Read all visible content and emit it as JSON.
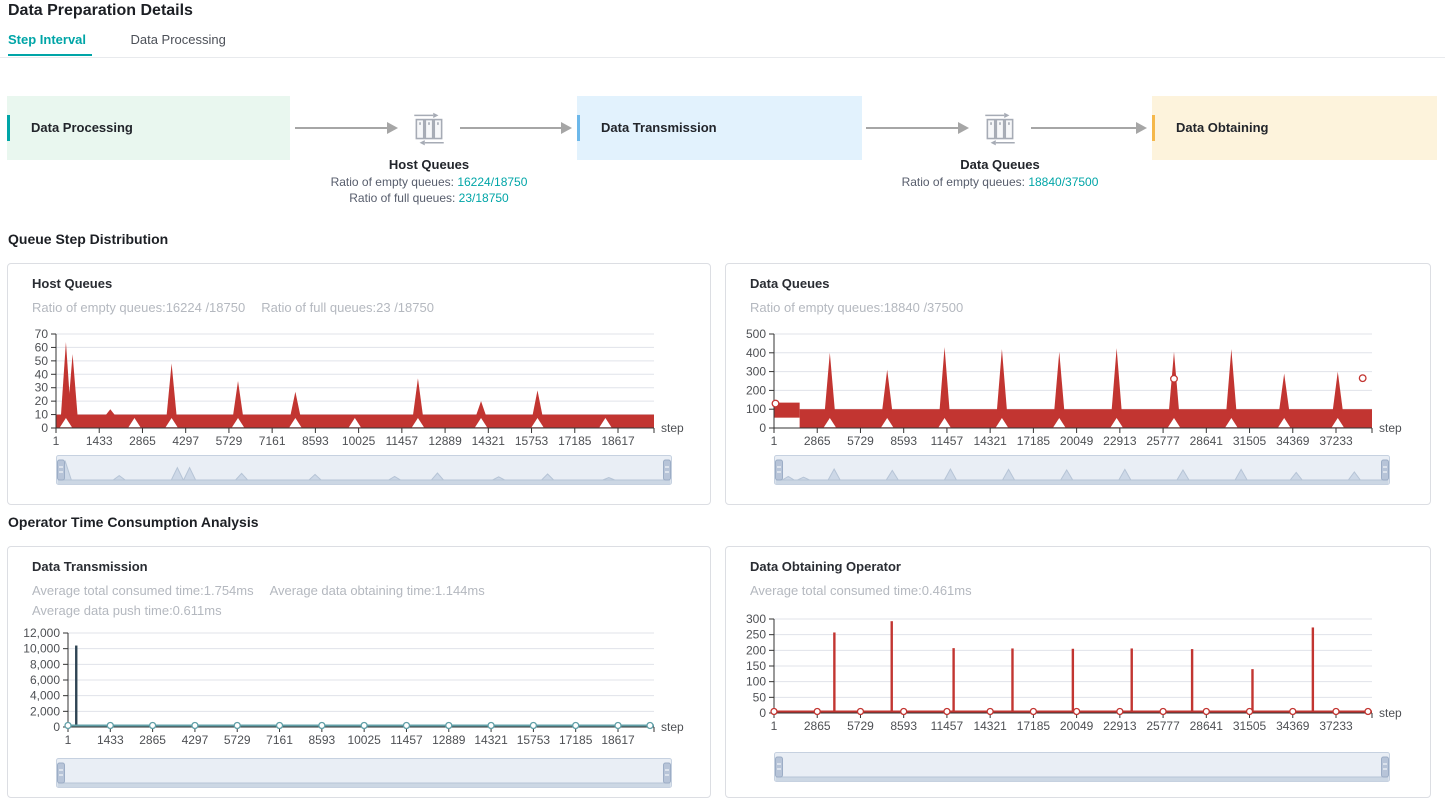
{
  "page": {
    "title": "Data Preparation Details"
  },
  "tabs": [
    {
      "label": "Step Interval",
      "active": true
    },
    {
      "label": "Data Processing",
      "active": false
    }
  ],
  "pipeline": {
    "stages": [
      {
        "label": "Data Processing",
        "bg": "#e9f7ef",
        "accent": "#00a5a7"
      },
      {
        "label": "Data Transmission",
        "bg": "#e2f2fd",
        "accent": "#6db8ea"
      },
      {
        "label": "Data Obtaining",
        "bg": "#fdf3dc",
        "accent": "#f5b84b"
      }
    ],
    "connectors": [
      {
        "name": "Host Queues",
        "stats": [
          {
            "label": "Ratio of empty queues: ",
            "value": "16224/18750"
          },
          {
            "label": "Ratio of full queues: ",
            "value": "23/18750"
          }
        ]
      },
      {
        "name": "Data Queues",
        "stats": [
          {
            "label": "Ratio of empty queues: ",
            "value": "18840/37500"
          }
        ]
      }
    ]
  },
  "sections": {
    "queue": "Queue Step Distribution",
    "operator": "Operator Time Consumption Analysis"
  },
  "cards": {
    "host_queues": {
      "title": "Host Queues",
      "stats": [
        "Ratio of empty queues:16224 /18750",
        "Ratio of full queues:23 /18750"
      ]
    },
    "data_queues": {
      "title": "Data Queues",
      "stats": [
        "Ratio of empty queues:18840 /37500"
      ]
    },
    "data_transmission": {
      "title": "Data Transmission",
      "stats": [
        "Average total consumed time:1.754ms",
        "Average data obtaining time:1.144ms",
        "Average data push time:0.611ms"
      ]
    },
    "data_obtaining": {
      "title": "Data Obtaining Operator",
      "stats": [
        "Average total consumed time:0.461ms"
      ]
    }
  },
  "colors": {
    "accent": "#00a5a7",
    "series_red": "#c23531",
    "series_dark": "#2f4554",
    "series_teal": "#61a0a8",
    "axis": "#333333",
    "axis_label": "#4e5054",
    "grid": "#e0e3ea",
    "slider_track": "#e9eef5",
    "slider_border": "#c6d1e0",
    "slider_profile": "#cdd8e7",
    "slider_handle": "#b7c4d8"
  },
  "chart_data": [
    {
      "id": "host_queues",
      "type": "line",
      "title": "Host Queues",
      "xlabel": "step",
      "ylim": [
        0,
        70
      ],
      "yticks": [
        0,
        10,
        20,
        30,
        40,
        50,
        60,
        70
      ],
      "xticks": [
        "1",
        "1433",
        "2865",
        "4297",
        "5729",
        "7161",
        "8593",
        "10025",
        "11457",
        "12889",
        "14321",
        "15753",
        "17185",
        "18617"
      ],
      "x_last": 18617,
      "x_max": 18750,
      "band": {
        "low": 0,
        "high": 10
      },
      "spikes": [
        [
          330,
          64
        ],
        [
          550,
          55
        ],
        [
          1800,
          14
        ],
        [
          3830,
          48
        ],
        [
          6030,
          35
        ],
        [
          7930,
          27
        ],
        [
          11990,
          37
        ],
        [
          14080,
          20
        ],
        [
          15950,
          28
        ]
      ],
      "valley_markers": [
        330,
        2600,
        3830,
        6030,
        7930,
        9900,
        11990,
        14080,
        15950,
        18200
      ],
      "slider_profile": [
        [
          0.012,
          0.92
        ],
        [
          0.1,
          0.22
        ],
        [
          0.195,
          0.62
        ],
        [
          0.215,
          0.62
        ],
        [
          0.3,
          0.33
        ],
        [
          0.42,
          0.28
        ],
        [
          0.55,
          0.18
        ],
        [
          0.62,
          0.35
        ],
        [
          0.72,
          0.16
        ],
        [
          0.8,
          0.3
        ],
        [
          0.9,
          0.12
        ]
      ]
    },
    {
      "id": "data_queues",
      "type": "line",
      "title": "Data Queues",
      "xlabel": "step",
      "ylim": [
        0,
        500
      ],
      "yticks": [
        0,
        100,
        200,
        300,
        400,
        500
      ],
      "xticks": [
        "1",
        "2865",
        "5729",
        "8593",
        "11457",
        "14321",
        "17185",
        "20049",
        "22913",
        "25777",
        "28641",
        "31505",
        "34369",
        "37233"
      ],
      "x_last": 37233,
      "x_max": 37500,
      "band": {
        "low": 0,
        "high": 100
      },
      "initial_band": {
        "until": 1700,
        "low": 55,
        "high": 135
      },
      "spikes": [
        [
          3700,
          400
        ],
        [
          7500,
          310
        ],
        [
          11300,
          430
        ],
        [
          15100,
          420
        ],
        [
          18900,
          405
        ],
        [
          22700,
          425
        ],
        [
          26500,
          405
        ],
        [
          30300,
          420
        ],
        [
          33800,
          290
        ],
        [
          37350,
          300
        ]
      ],
      "valley_markers": [
        3700,
        7500,
        11300,
        15100,
        18900,
        22700,
        26500,
        30300,
        33800,
        37350
      ],
      "point_markers": [
        [
          100,
          130
        ],
        [
          26500,
          262
        ],
        [
          39000,
          265
        ]
      ],
      "slider_profile": [
        [
          0.02,
          0.18
        ],
        [
          0.045,
          0.14
        ],
        [
          0.095,
          0.55
        ],
        [
          0.19,
          0.48
        ],
        [
          0.285,
          0.55
        ],
        [
          0.38,
          0.53
        ],
        [
          0.475,
          0.5
        ],
        [
          0.57,
          0.53
        ],
        [
          0.665,
          0.5
        ],
        [
          0.76,
          0.53
        ],
        [
          0.85,
          0.38
        ],
        [
          0.945,
          0.4
        ]
      ]
    },
    {
      "id": "data_transmission",
      "type": "line",
      "title": "Data Transmission",
      "xlabel": "step",
      "ylim": [
        0,
        12000
      ],
      "yticks": [
        0,
        2000,
        4000,
        6000,
        8000,
        10000,
        12000
      ],
      "yfmt": "comma",
      "xticks": [
        "1",
        "1433",
        "2865",
        "4297",
        "5729",
        "7161",
        "8593",
        "10025",
        "11457",
        "12889",
        "14321",
        "15753",
        "17185",
        "18617"
      ],
      "x_last": 18617,
      "x_max": 18750,
      "thin_spikes": [
        [
          280,
          10400
        ]
      ],
      "thin_color": "dark",
      "flat_line": {
        "value": 100,
        "color": "teal",
        "markers": true
      },
      "slider_profile": []
    },
    {
      "id": "data_obtaining",
      "type": "line",
      "title": "Data Obtaining Operator",
      "xlabel": "step",
      "ylim": [
        0,
        300
      ],
      "yticks": [
        0,
        50,
        100,
        150,
        200,
        250,
        300
      ],
      "xticks": [
        "1",
        "2865",
        "5729",
        "8593",
        "11457",
        "14321",
        "17185",
        "20049",
        "22913",
        "25777",
        "28641",
        "31505",
        "34369",
        "37233"
      ],
      "x_last": 37233,
      "x_max": 37500,
      "thin_spikes": [
        [
          4000,
          257
        ],
        [
          7800,
          293
        ],
        [
          11900,
          207
        ],
        [
          15800,
          206
        ],
        [
          19800,
          205
        ],
        [
          23700,
          206
        ],
        [
          27700,
          204
        ],
        [
          31700,
          140
        ],
        [
          35700,
          273
        ]
      ],
      "thin_color": "red",
      "flat_line": {
        "value": 3,
        "color": "red",
        "markers": true
      },
      "slider_profile": []
    }
  ]
}
